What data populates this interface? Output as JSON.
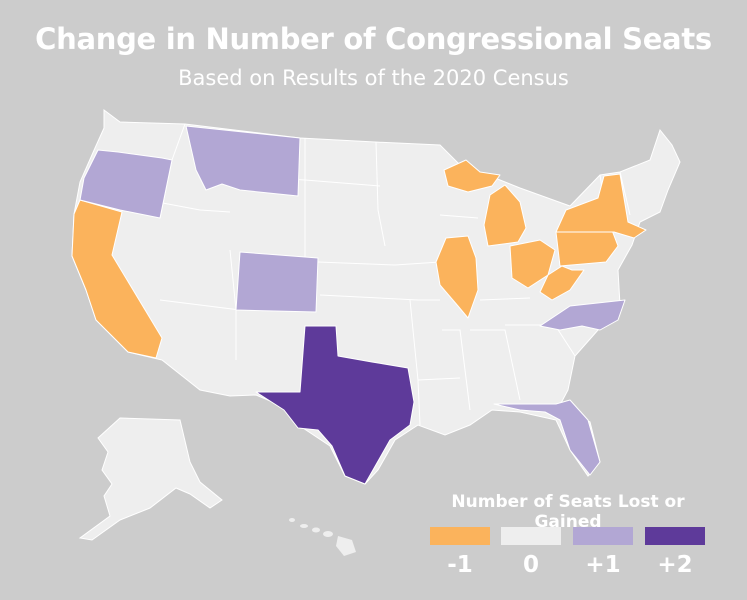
{
  "title": "Change in Number of Congressional Seats",
  "subtitle": "Based on Results of the 2020 Census",
  "colors": {
    "minus1": "#fbb35c",
    "zero": "#eeeeee",
    "plus1": "#b2a7d4",
    "plus2": "#5e3a9a",
    "background": "#cccccc"
  },
  "legend": {
    "title": "Number of Seats Lost or Gained",
    "items": [
      {
        "label": "-1",
        "color": "#fbb35c"
      },
      {
        "label": "0",
        "color": "#eeeeee"
      },
      {
        "label": "+1",
        "color": "#b2a7d4"
      },
      {
        "label": "+2",
        "color": "#5e3a9a"
      }
    ]
  },
  "seat_changes": {
    "TX": 2,
    "CO": 1,
    "FL": 1,
    "MT": 1,
    "NC": 1,
    "OR": 1,
    "CA": -1,
    "IL": -1,
    "MI": -1,
    "NY": -1,
    "OH": -1,
    "PA": -1,
    "WV": -1
  }
}
